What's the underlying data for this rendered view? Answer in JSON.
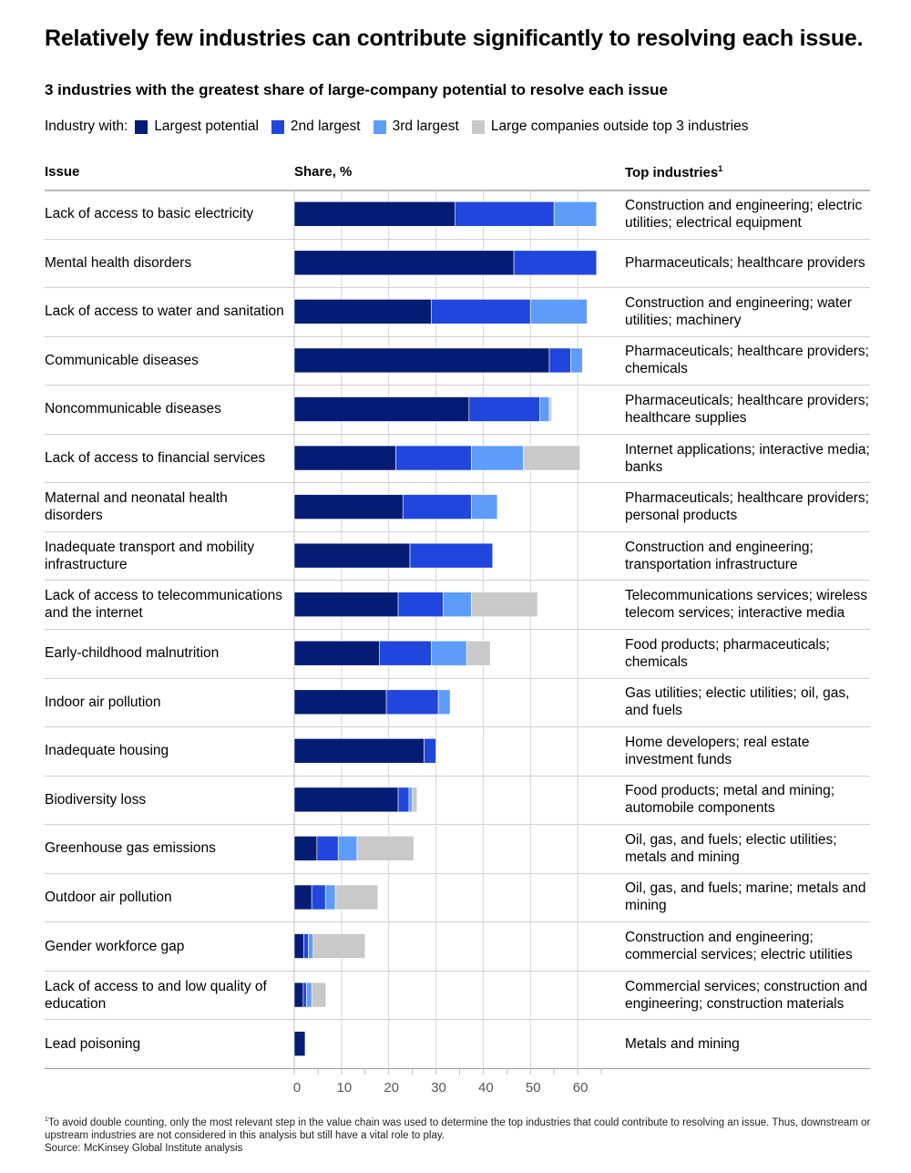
{
  "title": "Relatively few industries can contribute significantly to resolving each issue.",
  "subtitle": "3 industries with the greatest share of large-company potential to resolve each issue",
  "legend": {
    "lead": "Industry with:",
    "items": [
      {
        "label": "Largest potential",
        "color": "#051c74"
      },
      {
        "label": "2nd largest",
        "color": "#2046de"
      },
      {
        "label": "3rd largest",
        "color": "#5e9cfc"
      },
      {
        "label": "Large companies outside top 3 industries",
        "color": "#c9c9c9"
      }
    ]
  },
  "columns": {
    "issue": "Issue",
    "share": "Share, %",
    "industries": "Top industries",
    "industries_footnote_mark": "1"
  },
  "rows": [
    {
      "issue": "Lack of access to basic electricity",
      "industries": "Construction and engineering; electric utilities; electrical equipment"
    },
    {
      "issue": "Mental health disorders",
      "industries": "Pharmaceuticals; healthcare providers"
    },
    {
      "issue": "Lack of access to water and sanitation",
      "industries": "Construction and engineering; water utilities; machinery"
    },
    {
      "issue": "Communicable diseases",
      "industries": "Pharmaceuticals; healthcare providers; chemicals"
    },
    {
      "issue": "Noncommunicable diseases",
      "industries": "Pharmaceuticals; healthcare providers; healthcare supplies"
    },
    {
      "issue": "Lack of access to financial services",
      "industries": "Internet applications; interactive media; banks"
    },
    {
      "issue": "Maternal and neonatal health disorders",
      "industries": "Pharmaceuticals; healthcare providers; personal products"
    },
    {
      "issue": "Inadequate transport and mobility infrastructure",
      "industries": "Construction and engineering; transportation infrastructure"
    },
    {
      "issue": "Lack of access to telecommunications and the internet",
      "industries": "Telecommunications services; wireless telecom services; interactive media"
    },
    {
      "issue": "Early-childhood malnutrition",
      "industries": "Food products; pharmaceuticals; chemicals"
    },
    {
      "issue": "Indoor air pollution",
      "industries": "Gas utilities; electic utilities; oil, gas, and fuels"
    },
    {
      "issue": "Inadequate housing",
      "industries": "Home developers; real estate investment funds"
    },
    {
      "issue": "Biodiversity loss",
      "industries": "Food products; metal and mining; automobile components"
    },
    {
      "issue": "Greenhouse gas emissions",
      "industries": "Oil, gas, and fuels; electic utilities; metals and mining"
    },
    {
      "issue": "Outdoor air pollution",
      "industries": "Oil, gas, and fuels; marine; metals and mining"
    },
    {
      "issue": "Gender workforce gap",
      "industries": "Construction and engineering; commercial services; electric utilities"
    },
    {
      "issue": "Lack of access to and low quality of education",
      "industries": "Commercial services; construction and engineering; construction materials"
    },
    {
      "issue": "Lead poisoning",
      "industries": "Metals and mining"
    }
  ],
  "footnote": "To avoid double counting, only the most relevant step in the value chain was used to determine the top industries that could contribute to resolving an issue. Thus, downstream or upstream industries are not considered in this analysis but still have a vital role to play.",
  "footnote_mark": "1",
  "source": "Source: McKinsey Global Institute analysis",
  "chart_data": {
    "type": "bar",
    "orientation": "horizontal",
    "stacked": true,
    "title": "3 industries with the greatest share of large-company potential to resolve each issue",
    "xlabel": "Share, %",
    "ylabel": "Issue",
    "xlim": [
      0,
      65
    ],
    "xticks": [
      0,
      10,
      20,
      30,
      40,
      50,
      60
    ],
    "grid": true,
    "legend_position": "top",
    "categories": [
      "Lack of access to basic electricity",
      "Mental health disorders",
      "Lack of access to water and sanitation",
      "Communicable diseases",
      "Noncommunicable diseases",
      "Lack of access to financial services",
      "Maternal and neonatal health disorders",
      "Inadequate transport and mobility infrastructure",
      "Lack of access to telecommunications and the internet",
      "Early-childhood malnutrition",
      "Indoor air pollution",
      "Inadequate housing",
      "Biodiversity loss",
      "Greenhouse gas emissions",
      "Outdoor air pollution",
      "Gender workforce gap",
      "Lack of access to and low quality of education",
      "Lead poisoning"
    ],
    "series": [
      {
        "name": "Largest potential",
        "color": "#051c74",
        "values": [
          34,
          46.5,
          29,
          54,
          37,
          21.5,
          23,
          24.5,
          22,
          18,
          19.5,
          27.5,
          22,
          4.8,
          3.7,
          2,
          1.9,
          2.3
        ]
      },
      {
        "name": "2nd largest",
        "color": "#2046de",
        "values": [
          21,
          17.5,
          21,
          4.5,
          15,
          16,
          14.5,
          17.5,
          9.5,
          11,
          11,
          2.5,
          2.3,
          4.5,
          2.9,
          1,
          0.7,
          0
        ]
      },
      {
        "name": "3rd largest",
        "color": "#5e9cfc",
        "values": [
          9,
          0,
          12,
          2.5,
          2,
          11,
          5.5,
          0,
          6,
          7.5,
          2.5,
          0,
          0.7,
          4,
          2.1,
          1,
          1.1,
          0
        ]
      },
      {
        "name": "Large companies outside top 3 industries",
        "color": "#c9c9c9",
        "values": [
          0,
          0,
          0,
          0,
          0.5,
          12,
          0,
          0,
          14,
          5,
          0,
          0,
          1,
          12,
          9,
          11,
          3,
          0
        ]
      }
    ]
  }
}
